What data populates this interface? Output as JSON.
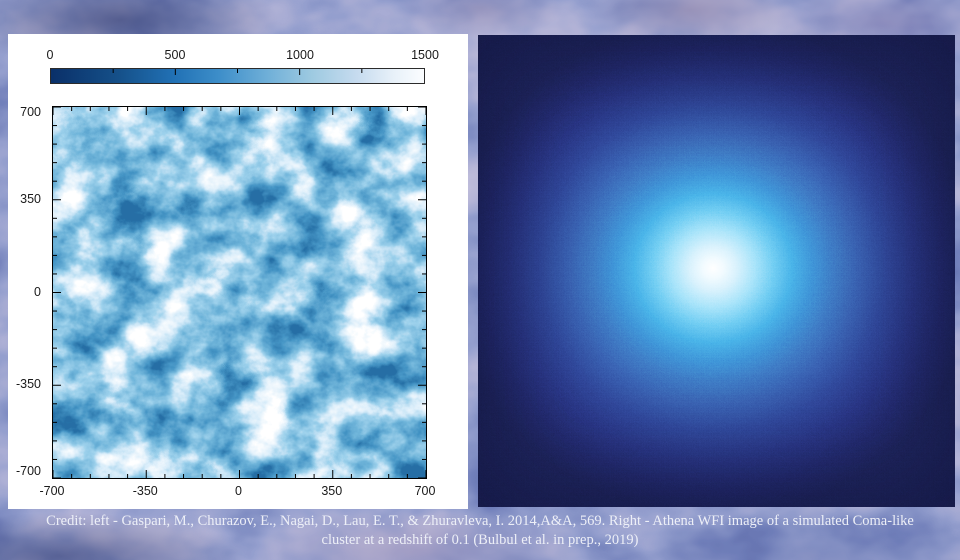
{
  "caption": {
    "line1": "Credit: left - Gaspari, M., Churazov, E., Nagai, D., Lau, E. T., & Zhuravleva, I. 2014,A&A, 569. Right - Athena WFI image of a simulated Coma-like",
    "line2": "cluster at a redshift of 0.1 (Bulbul et al. in prep., 2019)"
  },
  "left_plot": {
    "colorbar_tick_labels": [
      "0",
      "500",
      "1000",
      "1500"
    ],
    "y_tick_labels": [
      "700",
      "350",
      "0",
      "-350",
      "-700"
    ],
    "x_tick_labels": [
      "-700",
      "-350",
      "0",
      "350",
      "700"
    ]
  },
  "colors": {
    "panel_white": "#ffffff",
    "right_panel_navy": "#202761",
    "glow_core_white": "#ffffff",
    "glow_cyan": "#49b4e9",
    "colorbar_dark_end": "#0a3069",
    "colorbar_light_end": "#fbfdff",
    "turbulence_mid_blue": "#3d8ec9",
    "caption_text": "#edeff7"
  },
  "chart_data": [
    {
      "type": "heatmap",
      "title": "",
      "xlabel": "",
      "ylabel": "",
      "x_range": [
        -700,
        700
      ],
      "y_range": [
        -700,
        700
      ],
      "x_ticks": [
        -700,
        -350,
        0,
        350,
        700
      ],
      "y_ticks": [
        700,
        350,
        0,
        -350,
        -700
      ],
      "minor_tick_step": 70,
      "grid": false,
      "colorbar": {
        "position": "top",
        "min": 0,
        "max": 1500,
        "ticks": [
          0,
          500,
          1000,
          1500
        ],
        "palette": [
          "#0a3069",
          "#2171b5",
          "#3d8ec9",
          "#9ecae1",
          "#c6dbef",
          "#ffffff"
        ]
      },
      "content": "turbulent velocity magnitude map of simulated intracluster medium; swirling filamentary field spanning full colorbar range"
    },
    {
      "type": "heatmap",
      "title": "",
      "axes": "none",
      "content": "X-ray surface-brightness image of simulated Coma-like cluster; smooth radially symmetric glow, white core at image center fading through cyan and blue to dark navy, speckled photon noise",
      "center_fraction": [
        0.493,
        0.494
      ]
    }
  ]
}
